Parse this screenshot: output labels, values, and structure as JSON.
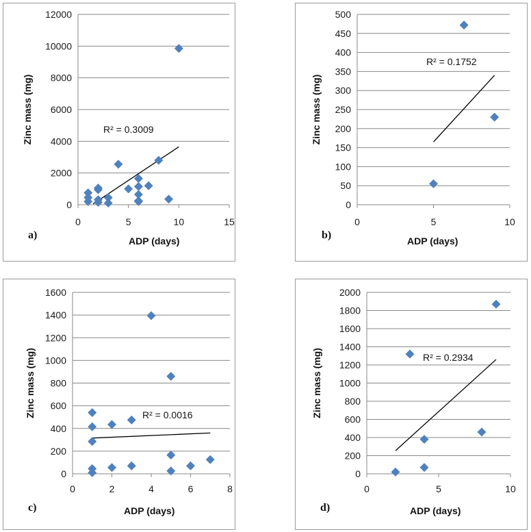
{
  "marker_color": "#4f81bd",
  "chart_data": [
    {
      "type": "scatter",
      "panel_label": "a)",
      "xlabel": "ADP (days)",
      "ylabel": "Zinc mass (mg)",
      "xlim": [
        0,
        15
      ],
      "xticks": [
        0,
        5,
        10,
        15
      ],
      "ylim": [
        0,
        12000
      ],
      "yticks": [
        0,
        2000,
        4000,
        6000,
        8000,
        10000,
        12000
      ],
      "grid": true,
      "points": [
        [
          1,
          750
        ],
        [
          1,
          450
        ],
        [
          1,
          200
        ],
        [
          2,
          1050
        ],
        [
          2,
          950
        ],
        [
          2,
          320
        ],
        [
          2,
          150
        ],
        [
          3,
          450
        ],
        [
          3,
          100
        ],
        [
          4,
          2550
        ],
        [
          5,
          1000
        ],
        [
          6,
          1650
        ],
        [
          6,
          1150
        ],
        [
          6,
          650
        ],
        [
          6,
          250
        ],
        [
          6,
          200
        ],
        [
          7,
          1200
        ],
        [
          8,
          2800
        ],
        [
          9,
          350
        ],
        [
          10,
          9850
        ]
      ],
      "trendline": [
        [
          1.5,
          50
        ],
        [
          10,
          3650
        ]
      ],
      "r2_label": "R² = 0.3009"
    },
    {
      "type": "scatter",
      "panel_label": "b)",
      "xlabel": "ADP (days)",
      "ylabel": "Zinc mass (mg)",
      "xlim": [
        0,
        10
      ],
      "xticks": [
        0,
        5,
        10
      ],
      "ylim": [
        0,
        500
      ],
      "yticks": [
        0,
        50,
        100,
        150,
        200,
        250,
        300,
        350,
        400,
        450,
        500
      ],
      "grid": true,
      "points": [
        [
          5,
          55
        ],
        [
          7,
          472
        ],
        [
          9,
          230
        ]
      ],
      "trendline": [
        [
          5,
          165
        ],
        [
          9,
          340
        ]
      ],
      "r2_label": "R² = 0.1752"
    },
    {
      "type": "scatter",
      "panel_label": "c)",
      "xlabel": "ADP (days)",
      "ylabel": "Zinc mass (mg)",
      "xlim": [
        0,
        8
      ],
      "xticks": [
        0,
        2,
        4,
        6,
        8
      ],
      "ylim": [
        0,
        1600
      ],
      "yticks": [
        0,
        200,
        400,
        600,
        800,
        1000,
        1200,
        1400,
        1600
      ],
      "grid": true,
      "points": [
        [
          1,
          540
        ],
        [
          1,
          415
        ],
        [
          1,
          285
        ],
        [
          1,
          45
        ],
        [
          1,
          10
        ],
        [
          2,
          435
        ],
        [
          2,
          55
        ],
        [
          3,
          475
        ],
        [
          3,
          70
        ],
        [
          4,
          1395
        ],
        [
          5,
          860
        ],
        [
          5,
          165
        ],
        [
          5,
          25
        ],
        [
          6,
          70
        ],
        [
          7,
          125
        ]
      ],
      "trendline": [
        [
          1,
          315
        ],
        [
          7,
          360
        ]
      ],
      "r2_label": "R² = 0.0016"
    },
    {
      "type": "scatter",
      "panel_label": "d)",
      "xlabel": "ADP (days)",
      "ylabel": "Zinc mass (mg)",
      "xlim": [
        0,
        10
      ],
      "xticks": [
        0,
        5,
        10
      ],
      "ylim": [
        0,
        2000
      ],
      "yticks": [
        0,
        200,
        400,
        600,
        800,
        1000,
        1200,
        1400,
        1600,
        1800,
        2000
      ],
      "grid": true,
      "points": [
        [
          2,
          20
        ],
        [
          3,
          1320
        ],
        [
          4,
          380
        ],
        [
          4,
          70
        ],
        [
          8,
          460
        ],
        [
          9,
          1870
        ]
      ],
      "trendline": [
        [
          2,
          255
        ],
        [
          9,
          1260
        ]
      ],
      "r2_label": "R² = 0.2934"
    }
  ]
}
